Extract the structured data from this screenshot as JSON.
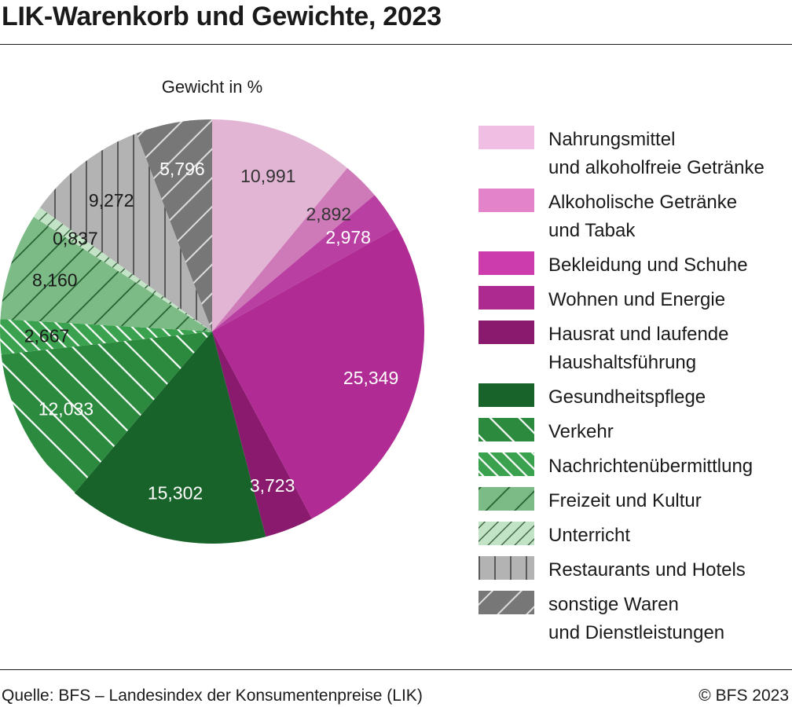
{
  "header": {
    "title": "LIK-Warenkorb und Gewichte, 2023"
  },
  "footer": {
    "source": "Quelle: BFS – Landesindex der Konsumentenpreise (LIK)",
    "copyright": "© BFS 2023"
  },
  "chart_data": {
    "type": "pie",
    "title": "LIK-Warenkorb und Gewichte, 2023",
    "value_label": "Gewicht in %",
    "legend_position": "right",
    "series": [
      {
        "name": "Nahrungsmittel und alkoholfreie Getränke",
        "legend_lines": [
          "Nahrungsmittel",
          "und alkoholfreie Getränke"
        ],
        "value": 10.991,
        "label": "10,991",
        "color": "#e3b5d5",
        "legend_color": "#f0bde3",
        "pattern": "none",
        "label_color": "#333333"
      },
      {
        "name": "Alkoholische Getränke und Tabak",
        "legend_lines": [
          "Alkoholische Getränke",
          "und Tabak"
        ],
        "value": 2.892,
        "label": "2,892",
        "color": "#cf7ab8",
        "legend_color": "#e383c9",
        "pattern": "none",
        "label_color": "#333333"
      },
      {
        "name": "Bekleidung und Schuhe",
        "legend_lines": [
          "Bekleidung und Schuhe"
        ],
        "value": 2.978,
        "label": "2,978",
        "color": "#b93fa2",
        "legend_color": "#cc3cad",
        "pattern": "none",
        "label_color": "#ffffff"
      },
      {
        "name": "Wohnen und Energie",
        "legend_lines": [
          "Wohnen und Energie"
        ],
        "value": 25.349,
        "label": "25,349",
        "color": "#b02b93",
        "legend_color": "#ad2b91",
        "pattern": "none",
        "label_color": "#ffffff"
      },
      {
        "name": "Hausrat und laufende Haushaltsführung",
        "legend_lines": [
          "Hausrat und laufende",
          "Haushaltsführung"
        ],
        "value": 3.723,
        "label": "3,723",
        "color": "#8a1a6e",
        "legend_color": "#8a1a6e",
        "pattern": "none",
        "label_color": "#ffffff"
      },
      {
        "name": "Gesundheitspflege",
        "legend_lines": [
          "Gesundheitspflege"
        ],
        "value": 15.302,
        "label": "15,302",
        "color": "#176329",
        "legend_color": "#176329",
        "pattern": "none",
        "label_color": "#ffffff"
      },
      {
        "name": "Verkehr",
        "legend_lines": [
          "Verkehr"
        ],
        "value": 12.033,
        "label": "12,033",
        "color": "#2b8a3e",
        "legend_color": "#2b8a3e",
        "pattern": "diag-back",
        "label_color": "#ffffff"
      },
      {
        "name": "Nachrichtenübermittlung",
        "legend_lines": [
          "Nachrichtenübermittlung"
        ],
        "value": 2.667,
        "label": "2,667",
        "color": "#3aa14f",
        "legend_color": "#3aa14f",
        "pattern": "diag-back-dense",
        "label_color": "#1a1a1a"
      },
      {
        "name": "Freizeit und Kultur",
        "legend_lines": [
          "Freizeit und Kultur"
        ],
        "value": 8.16,
        "label": "8,160",
        "color": "#7cba86",
        "legend_color": "#7cba86",
        "pattern": "diag-fwd",
        "label_color": "#1a1a1a"
      },
      {
        "name": "Unterricht",
        "legend_lines": [
          "Unterricht"
        ],
        "value": 0.837,
        "label": "0,837",
        "color": "#c3e3c6",
        "legend_color": "#c3e3c6",
        "pattern": "diag-fwd-dense",
        "label_color": "#1a1a1a"
      },
      {
        "name": "Restaurants und Hotels",
        "legend_lines": [
          "Restaurants und Hotels"
        ],
        "value": 9.272,
        "label": "9,272",
        "color": "#b3b3b3",
        "legend_color": "#b3b3b3",
        "pattern": "vertical",
        "label_color": "#1a1a1a"
      },
      {
        "name": "sonstige Waren und Dienstleistungen",
        "legend_lines": [
          "sonstige Waren",
          "und Dienstleistungen"
        ],
        "value": 5.796,
        "label": "5,796",
        "color": "#777777",
        "legend_color": "#777777",
        "pattern": "diag-fwd-light",
        "label_color": "#ffffff"
      }
    ]
  }
}
